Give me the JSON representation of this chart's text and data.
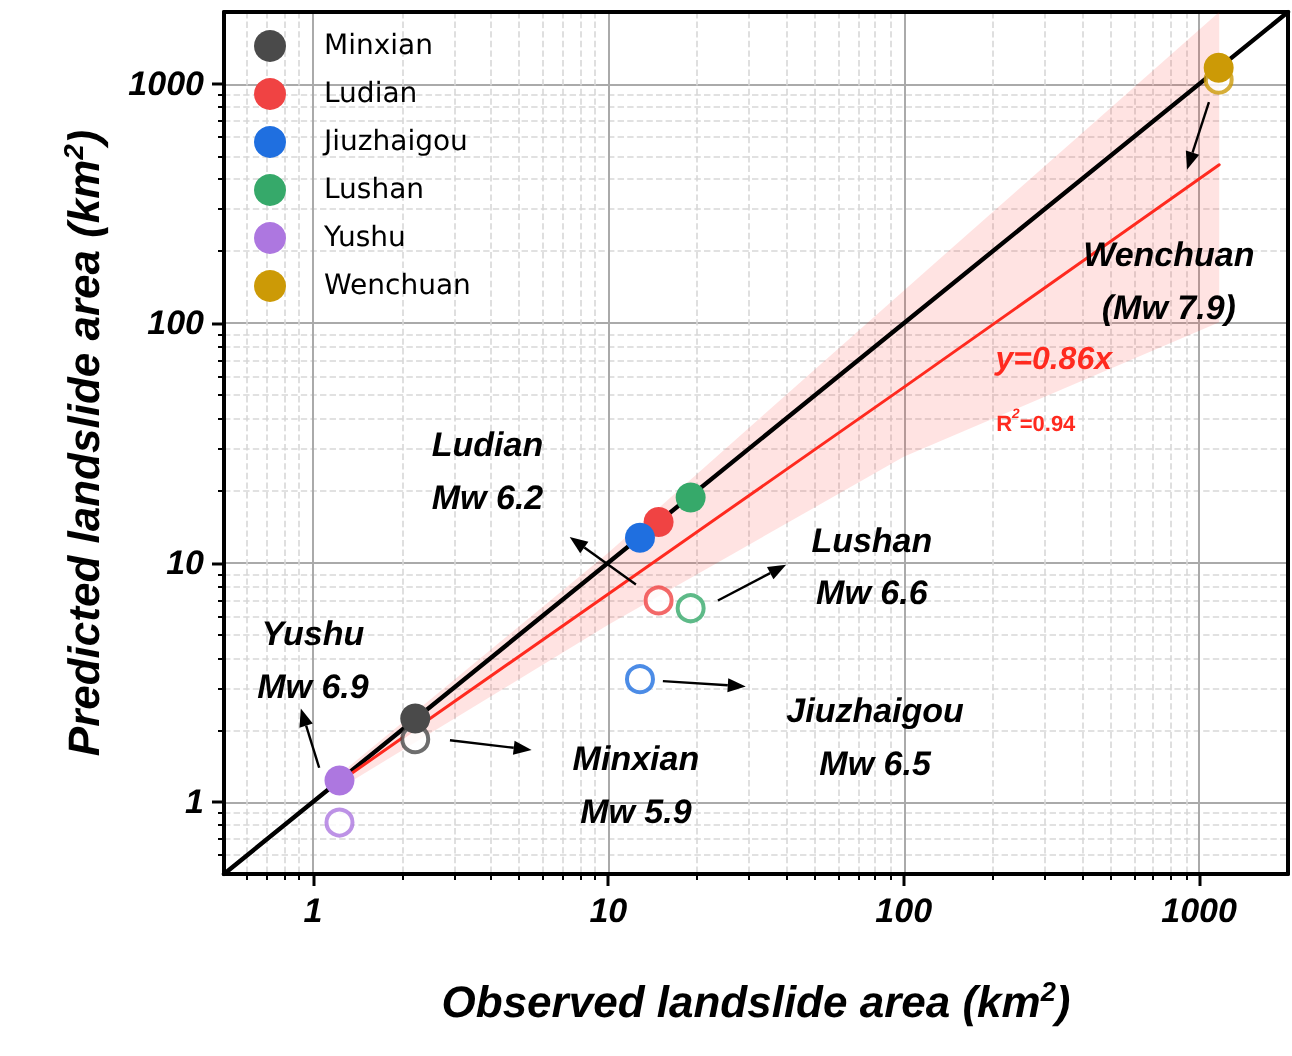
{
  "chart_data": {
    "type": "scatter",
    "xlabel": "Observed landslide area (km$^{2}$)",
    "ylabel": "Predicted landslide area (km$^{2}$)",
    "log": "xy",
    "xlim": [
      0.5,
      2000
    ],
    "ylim": [
      0.5,
      2000
    ],
    "xticks": [
      1,
      10,
      100,
      1000
    ],
    "yticks": [
      1,
      10,
      100,
      1000
    ],
    "grid": true,
    "legend": "top left",
    "marker": "circle",
    "series": [
      {
        "name": "Minxian",
        "color": "#4a4a4a",
        "x": [
          2.22
        ],
        "values": [
          2.23
        ]
      },
      {
        "name": "Ludian",
        "color": "#f04343",
        "x": [
          14.8
        ],
        "values": [
          14.8
        ]
      },
      {
        "name": "Jiuzhaigou",
        "color": "#1f6fe0",
        "x": [
          12.8
        ],
        "values": [
          12.7
        ]
      },
      {
        "name": "Lushan",
        "color": "#36a96a",
        "x": [
          19.0
        ],
        "values": [
          18.7
        ]
      },
      {
        "name": "Yushu",
        "color": "#ad77e0",
        "x": [
          1.23
        ],
        "values": [
          1.23
        ]
      },
      {
        "name": "Wenchuan",
        "color": "#cc9a06",
        "x": [
          1165
        ],
        "values": [
          1170
        ]
      },
      {
        "color": "#4a4a4a",
        "x": [
          2.22
        ],
        "values": [
          1.83
        ]
      },
      {
        "color": "#f04343",
        "x": [
          14.8
        ],
        "values": [
          6.95
        ]
      },
      {
        "color": "#1f6fe0",
        "x": [
          12.8
        ],
        "values": [
          3.26
        ]
      },
      {
        "color": "#36a96a",
        "x": [
          19.0
        ],
        "values": [
          6.45
        ]
      },
      {
        "color": "#ad77e0",
        "x": [
          1.23
        ],
        "values": [
          0.82
        ]
      },
      {
        "color": "#cc9a06",
        "x": [
          1165
        ],
        "values": [
          1043
        ]
      },
      {
        "type": "line",
        "color": "#000000",
        "marker": "none",
        "x": [
          0.5,
          2000
        ],
        "values": [
          0.5,
          2000
        ]
      },
      {
        "type": "line",
        "color": "#ff2a1f",
        "marker": "none",
        "x": [
          1.32,
          10,
          100,
          1170
        ],
        "values": [
          1.29,
          7.4,
          54,
          460
        ],
        "lower": [
          1.2,
          5.5,
          27.7,
          101
        ],
        "upper": [
          1.4,
          11,
          137,
          2000
        ]
      }
    ],
    "annotations": [
      "Wenchuan\n(Mw 7.9)",
      "y=0.86x",
      "R$^{2}$=0.94",
      "Ludian\nMw 6.2",
      "Lushan\nMw 6.6",
      "Jiuzhaigou\nMw 6.5",
      "Minxian\nMw 5.9",
      "Yushu\nMw 6.9"
    ]
  }
}
